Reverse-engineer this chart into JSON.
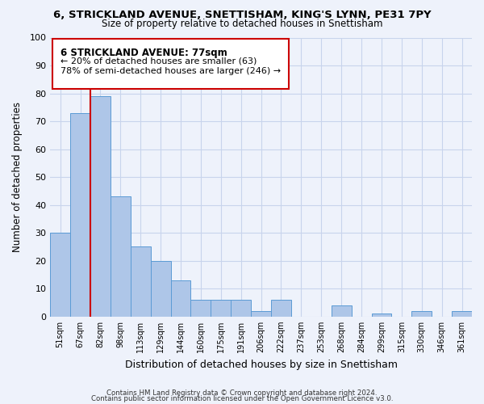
{
  "title1": "6, STRICKLAND AVENUE, SNETTISHAM, KING'S LYNN, PE31 7PY",
  "title2": "Size of property relative to detached houses in Snettisham",
  "xlabel": "Distribution of detached houses by size in Snettisham",
  "ylabel": "Number of detached properties",
  "categories": [
    "51sqm",
    "67sqm",
    "82sqm",
    "98sqm",
    "113sqm",
    "129sqm",
    "144sqm",
    "160sqm",
    "175sqm",
    "191sqm",
    "206sqm",
    "222sqm",
    "237sqm",
    "253sqm",
    "268sqm",
    "284sqm",
    "299sqm",
    "315sqm",
    "330sqm",
    "346sqm",
    "361sqm"
  ],
  "values": [
    30,
    73,
    79,
    43,
    25,
    20,
    13,
    6,
    6,
    6,
    2,
    6,
    0,
    0,
    4,
    0,
    1,
    0,
    2,
    0,
    2
  ],
  "bar_color": "#aec6e8",
  "bar_edge_color": "#5b9bd5",
  "redline_x": 1.5,
  "annotation_title": "6 STRICKLAND AVENUE: 77sqm",
  "annotation_line1": "← 20% of detached houses are smaller (63)",
  "annotation_line2": "78% of semi-detached houses are larger (246) →",
  "annotation_box_edge": "#cc0000",
  "redline_color": "#cc0000",
  "ylim": [
    0,
    100
  ],
  "yticks": [
    0,
    10,
    20,
    30,
    40,
    50,
    60,
    70,
    80,
    90,
    100
  ],
  "footer1": "Contains HM Land Registry data © Crown copyright and database right 2024.",
  "footer2": "Contains public sector information licensed under the Open Government Licence v3.0.",
  "bg_color": "#eef2fb",
  "grid_color": "#c8d4ec"
}
